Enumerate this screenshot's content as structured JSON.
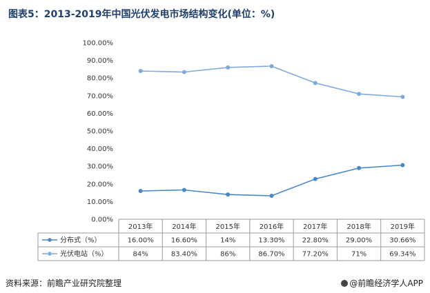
{
  "title": "图表5：2013-2019年中国光伏发电市场结构变化(单位：%)",
  "source": "资料来源：前瞻产业研究院整理",
  "brand": "@前瞻经济学人APP",
  "chart_data": {
    "type": "line",
    "categories": [
      "2013年",
      "2014年",
      "2015年",
      "2016年",
      "2017年",
      "2018年",
      "2019年"
    ],
    "ylim": [
      0,
      100
    ],
    "yticks": [
      "0.00%",
      "10.00%",
      "20.00%",
      "30.00%",
      "40.00%",
      "50.00%",
      "60.00%",
      "70.00%",
      "80.00%",
      "90.00%",
      "100.00%"
    ],
    "grid": false,
    "legend": "table-below",
    "series": [
      {
        "name": "分布式（%）",
        "values": [
          16.0,
          16.6,
          14,
          13.3,
          22.8,
          29.0,
          30.66
        ],
        "labels": [
          "16.00%",
          "16.60%",
          "14%",
          "13.30%",
          "22.80%",
          "29.00%",
          "30.66%"
        ],
        "color": "#4a86c8"
      },
      {
        "name": "光伏电站（%）",
        "values": [
          84,
          83.4,
          86,
          86.7,
          77.2,
          71,
          69.34
        ],
        "labels": [
          "84%",
          "83.40%",
          "86%",
          "86.70%",
          "77.20%",
          "71%",
          "69.34%"
        ],
        "color": "#7fa9dd"
      }
    ]
  }
}
